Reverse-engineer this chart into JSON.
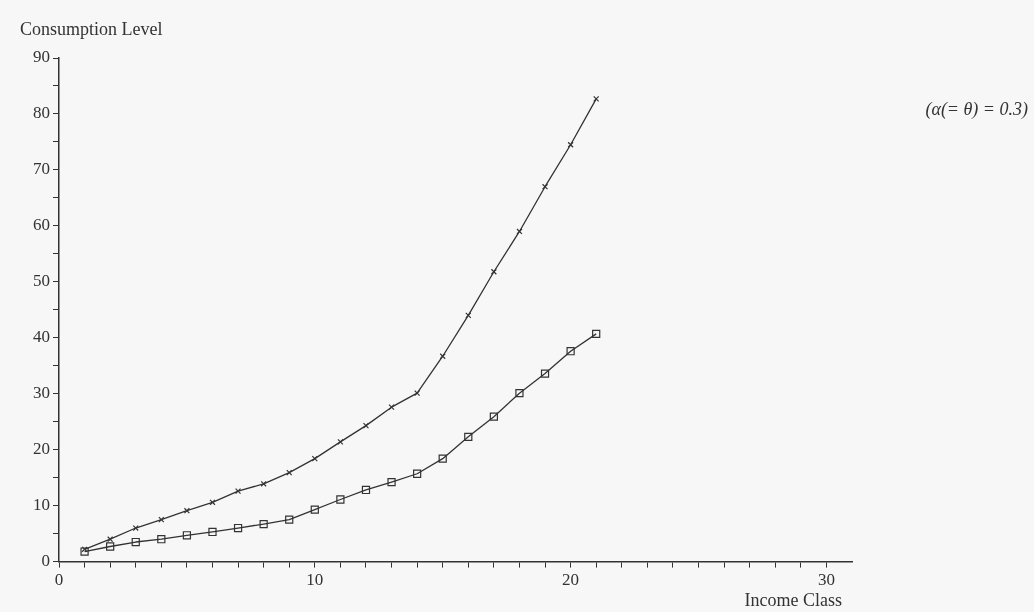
{
  "chart_data": {
    "type": "line",
    "xlabel": "Income Class",
    "ylabel": "Consumption Level",
    "annotations": [
      "(α(= θ) = 0.3)"
    ],
    "xlim": [
      0,
      31
    ],
    "xticks": [
      0,
      {
        "value": 1,
        "label": null
      },
      {
        "value": 2,
        "label": null
      },
      {
        "value": 3,
        "label": null
      },
      {
        "value": 4,
        "label": null
      },
      {
        "value": 5,
        "label": null
      },
      {
        "value": 6,
        "label": null
      },
      {
        "value": 7,
        "label": null
      },
      {
        "value": 8,
        "label": null
      },
      {
        "value": 9,
        "label": null
      },
      10,
      {
        "value": 11,
        "label": null
      },
      {
        "value": 12,
        "label": null
      },
      {
        "value": 13,
        "label": null
      },
      {
        "value": 14,
        "label": null
      },
      {
        "value": 15,
        "label": null
      },
      {
        "value": 16,
        "label": null
      },
      {
        "value": 17,
        "label": null
      },
      {
        "value": 18,
        "label": null
      },
      {
        "value": 19,
        "label": null
      },
      20,
      {
        "value": 21,
        "label": null
      },
      {
        "value": 22,
        "label": null
      },
      {
        "value": 23,
        "label": null
      },
      {
        "value": 24,
        "label": null
      },
      {
        "value": 25,
        "label": null
      },
      {
        "value": 26,
        "label": null
      },
      {
        "value": 27,
        "label": null
      },
      {
        "value": 28,
        "label": null
      },
      {
        "value": 29,
        "label": null
      },
      30
    ],
    "ylim": [
      0,
      90
    ],
    "yticks": [
      0,
      {
        "value": 5,
        "label": null
      },
      10,
      {
        "value": 15,
        "label": null
      },
      20,
      {
        "value": 25,
        "label": null
      },
      30,
      {
        "value": 35,
        "label": null
      },
      40,
      {
        "value": 45,
        "label": null
      },
      50,
      {
        "value": 55,
        "label": null
      },
      60,
      {
        "value": 65,
        "label": null
      },
      70,
      {
        "value": 75,
        "label": null
      },
      80,
      {
        "value": 85,
        "label": null
      },
      90
    ],
    "x": [
      1,
      2,
      3,
      4,
      5,
      6,
      7,
      8,
      9,
      10,
      11,
      12,
      13,
      14,
      15,
      16,
      17,
      18,
      19,
      20,
      21
    ],
    "grid": false,
    "legend": false,
    "line_style": "solid",
    "series": [
      {
        "color": "#333333",
        "marker": "cross",
        "values": [
          2.2,
          4,
          6,
          7.5,
          9.1,
          10.6,
          12.6,
          13.9,
          15.9,
          18.4,
          21.4,
          24.3,
          27.6,
          30.1,
          36.7,
          44,
          51.8,
          59,
          67,
          74.5,
          82.7
        ]
      },
      {
        "color": "#333333",
        "marker": "square",
        "values": [
          1.8,
          2.7,
          3.5,
          4,
          4.7,
          5.3,
          6,
          6.7,
          7.5,
          9.3,
          11.1,
          12.8,
          14.2,
          15.7,
          18.4,
          22.3,
          25.9,
          30.1,
          33.6,
          37.6,
          40.7
        ]
      }
    ]
  }
}
